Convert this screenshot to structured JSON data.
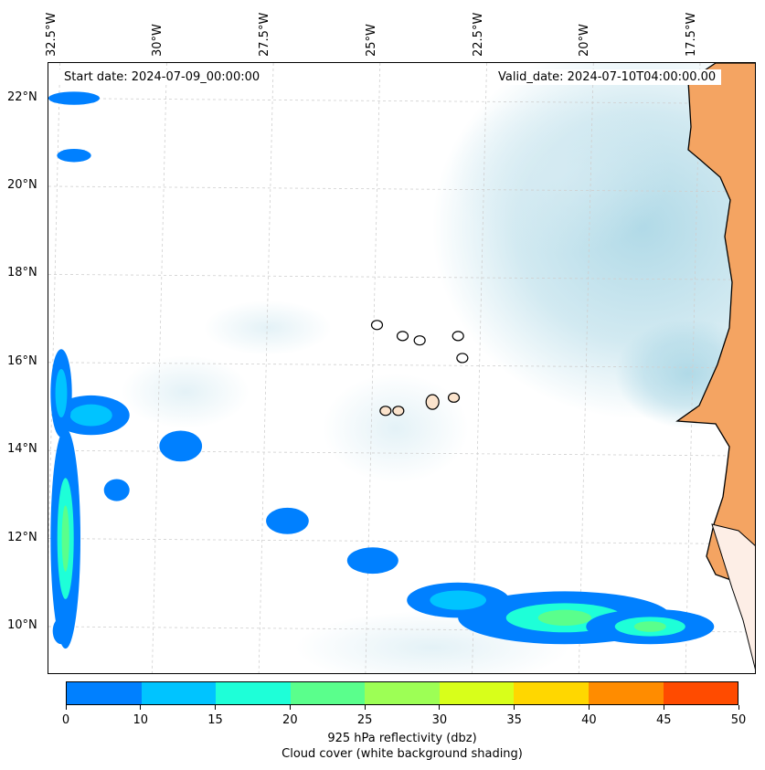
{
  "map": {
    "extent": {
      "lon_min": -32.6,
      "lon_max": -16.0,
      "lat_min": 8.9,
      "lat_max": 22.8
    },
    "longitude_labels": [
      "32.5°W",
      "30°W",
      "27.5°W",
      "25°W",
      "22.5°W",
      "20°W",
      "17.5°W"
    ],
    "longitude_values": [
      -32.5,
      -30,
      -27.5,
      -25,
      -22.5,
      -20,
      -17.5
    ],
    "latitude_labels": [
      "22°N",
      "20°N",
      "18°N",
      "16°N",
      "14°N",
      "12°N",
      "10°N"
    ],
    "latitude_values": [
      22,
      20,
      18,
      16,
      14,
      12,
      10
    ],
    "start_date": "Start date: 2024-07-09_00:00:00",
    "valid_date": "Valid_date: 2024-07-10T04:00:00.00",
    "gridlines": "dashed",
    "land_color": "#f4a462",
    "cloud_color": "#add8e6",
    "coastline_color": "#000000"
  },
  "colorbar": {
    "ticks": [
      "0",
      "10",
      "15",
      "20",
      "25",
      "30",
      "35",
      "40",
      "45",
      "50"
    ],
    "colors": [
      "#0080ff",
      "#00c4ff",
      "#1effd8",
      "#5aff8c",
      "#9dff55",
      "#d8ff1a",
      "#ffd700",
      "#ff8c00",
      "#ff4b00"
    ],
    "label_line1": "925 hPa reflectivity (dbz)",
    "label_line2": "Cloud cover (white background shading)"
  },
  "chart_data": {
    "type": "heatmap",
    "variable": "925 hPa reflectivity (dbz)",
    "levels": [
      0,
      10,
      15,
      20,
      25,
      30,
      35,
      40,
      45,
      50
    ],
    "islands": [
      {
        "lon": -24.9,
        "lat": 16.85
      },
      {
        "lon": -24.3,
        "lat": 16.6
      },
      {
        "lon": -23.9,
        "lat": 16.5
      },
      {
        "lon": -23.0,
        "lat": 16.6
      },
      {
        "lon": -22.9,
        "lat": 16.1
      },
      {
        "lon": -23.6,
        "lat": 15.1
      },
      {
        "lon": -24.4,
        "lat": 14.9
      },
      {
        "lon": -24.7,
        "lat": 14.9
      },
      {
        "lon": -23.1,
        "lat": 15.2
      }
    ],
    "reflectivity_regions": [
      {
        "lon": -31.6,
        "lat": 14.8,
        "rx": 0.9,
        "ry": 0.45,
        "dbz": 10
      },
      {
        "lon": -32.3,
        "lat": 15.3,
        "rx": 0.25,
        "ry": 1.0,
        "dbz": 10
      },
      {
        "lon": -32.2,
        "lat": 12.0,
        "rx": 0.35,
        "ry": 2.5,
        "dbz": 15
      },
      {
        "lon": -32.3,
        "lat": 9.9,
        "rx": 0.2,
        "ry": 0.3,
        "dbz": 5
      },
      {
        "lon": -20.5,
        "lat": 10.2,
        "rx": 2.5,
        "ry": 0.6,
        "dbz": 15
      },
      {
        "lon": -23.0,
        "lat": 10.6,
        "rx": 1.2,
        "ry": 0.4,
        "dbz": 10
      },
      {
        "lon": -18.5,
        "lat": 10.0,
        "rx": 1.5,
        "ry": 0.4,
        "dbz": 15
      },
      {
        "lon": -25.0,
        "lat": 11.5,
        "rx": 0.6,
        "ry": 0.3,
        "dbz": 5
      },
      {
        "lon": -27.0,
        "lat": 12.4,
        "rx": 0.5,
        "ry": 0.3,
        "dbz": 5
      },
      {
        "lon": -31.0,
        "lat": 13.1,
        "rx": 0.3,
        "ry": 0.25,
        "dbz": 5
      },
      {
        "lon": -29.5,
        "lat": 14.1,
        "rx": 0.5,
        "ry": 0.35,
        "dbz": 5
      },
      {
        "lon": -32.0,
        "lat": 22.0,
        "rx": 0.6,
        "ry": 0.15,
        "dbz": 5
      },
      {
        "lon": -32.0,
        "lat": 20.7,
        "rx": 0.4,
        "ry": 0.15,
        "dbz": 5
      }
    ]
  }
}
